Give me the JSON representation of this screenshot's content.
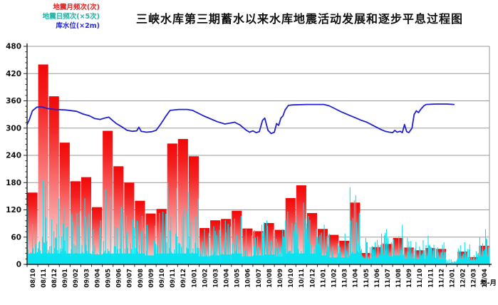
{
  "title": "三峡水库第三期蓄水以来水库地震活动发展和逐步平息过程图",
  "legend": [
    {
      "label": "地震月频次(次)",
      "color": "#e02222"
    },
    {
      "label": "地震日频次(×5次)",
      "color": "#1db2a6"
    },
    {
      "label": "库水位(×2m)",
      "color": "#2a2ad0"
    }
  ],
  "x_axis_label": "年-月",
  "chart_data": {
    "type": "bar",
    "title": "三峡水库第三期蓄水以来水库地震活动发展和逐步平息过程图",
    "xlabel": "年-月",
    "ylabel": "",
    "ylim": [
      0,
      480
    ],
    "ytick_step": 60,
    "y_ticks": [
      0,
      60,
      120,
      180,
      240,
      300,
      360,
      420,
      480
    ],
    "grid": true,
    "legend_position": "top-left",
    "categories": [
      "08/10",
      "08/11",
      "08/12",
      "09/01",
      "09/02",
      "09/03",
      "09/04",
      "09/05",
      "09/06",
      "09/07",
      "09/08",
      "09/09",
      "09/10",
      "09/11",
      "09/12",
      "10/01",
      "10/02",
      "10/03",
      "10/04",
      "10/05",
      "10/06",
      "10/07",
      "10/08",
      "10/09",
      "10/10",
      "10/11",
      "10/12",
      "11/01",
      "11/02",
      "11/03",
      "11/04",
      "11/05",
      "11/06",
      "11/07",
      "11/08",
      "11/09",
      "11/10",
      "11/11",
      "11/12",
      "12/01",
      "12/02",
      "12/03",
      "12/04"
    ],
    "series": [
      {
        "name": "地震月频次(次)",
        "type": "bar-gradient",
        "color_top": "#f20808",
        "color_bottom": "#ffe9e9",
        "values": [
          158,
          440,
          370,
          268,
          183,
          192,
          126,
          294,
          216,
          180,
          140,
          112,
          122,
          266,
          276,
          238,
          80,
          97,
          100,
          118,
          79,
          73,
          91,
          76,
          146,
          174,
          113,
          78,
          65,
          52,
          136,
          25,
          38,
          45,
          58,
          37,
          31,
          36,
          34,
          3,
          28,
          16,
          41
        ]
      },
      {
        "name": "地震日频次(×5次)",
        "type": "daily-spikes",
        "color": "#0be2ef",
        "note": "dense daily bars; per-month peak envelope estimated from pixels",
        "monthly_peaks": [
          130,
          190,
          150,
          130,
          120,
          150,
          100,
          170,
          130,
          110,
          110,
          90,
          120,
          185,
          130,
          165,
          80,
          90,
          100,
          110,
          80,
          90,
          100,
          80,
          120,
          140,
          110,
          90,
          70,
          70,
          175,
          60,
          70,
          80,
          90,
          60,
          55,
          65,
          50,
          12,
          50,
          45,
          80
        ]
      },
      {
        "name": "库水位(×2m)",
        "type": "line",
        "color": "#2121cd",
        "points": [
          [
            0.0,
            308
          ],
          [
            0.2,
            318
          ],
          [
            0.5,
            338
          ],
          [
            0.9,
            346
          ],
          [
            1.3,
            347
          ],
          [
            1.9,
            343
          ],
          [
            2.6,
            341
          ],
          [
            3.6,
            340
          ],
          [
            4.6,
            337
          ],
          [
            5.2,
            331
          ],
          [
            5.8,
            327
          ],
          [
            6.3,
            321
          ],
          [
            6.8,
            319
          ],
          [
            7.2,
            322
          ],
          [
            7.6,
            324
          ],
          [
            7.9,
            318
          ],
          [
            8.3,
            310
          ],
          [
            8.8,
            303
          ],
          [
            9.3,
            295
          ],
          [
            9.8,
            293
          ],
          [
            10.2,
            294
          ],
          [
            10.4,
            302
          ],
          [
            10.6,
            293
          ],
          [
            11.1,
            291
          ],
          [
            11.6,
            292
          ],
          [
            12.0,
            295
          ],
          [
            12.4,
            308
          ],
          [
            12.9,
            326
          ],
          [
            13.3,
            339
          ],
          [
            14.1,
            341
          ],
          [
            14.9,
            341
          ],
          [
            15.4,
            339
          ],
          [
            15.9,
            333
          ],
          [
            16.4,
            327
          ],
          [
            17.1,
            320
          ],
          [
            17.7,
            314
          ],
          [
            18.4,
            309
          ],
          [
            19.1,
            312
          ],
          [
            19.3,
            313
          ],
          [
            19.8,
            307
          ],
          [
            20.4,
            295
          ],
          [
            20.7,
            291
          ],
          [
            21.0,
            294
          ],
          [
            21.3,
            290
          ],
          [
            21.6,
            292
          ],
          [
            21.9,
            317
          ],
          [
            22.1,
            322
          ],
          [
            22.4,
            295
          ],
          [
            22.7,
            288
          ],
          [
            23.0,
            291
          ],
          [
            23.2,
            310
          ],
          [
            23.4,
            306
          ],
          [
            23.6,
            322
          ],
          [
            23.8,
            327
          ],
          [
            24.0,
            340
          ],
          [
            24.3,
            350
          ],
          [
            24.7,
            351
          ],
          [
            26.0,
            352
          ],
          [
            27.6,
            352
          ],
          [
            28.1,
            349
          ],
          [
            28.7,
            342
          ],
          [
            29.2,
            336
          ],
          [
            29.9,
            329
          ],
          [
            30.5,
            323
          ],
          [
            31.1,
            317
          ],
          [
            31.6,
            313
          ],
          [
            32.0,
            308
          ],
          [
            32.4,
            303
          ],
          [
            32.9,
            297
          ],
          [
            33.3,
            293
          ],
          [
            33.7,
            291
          ],
          [
            34.0,
            290
          ],
          [
            34.2,
            295
          ],
          [
            34.4,
            291
          ],
          [
            34.7,
            293
          ],
          [
            34.9,
            290
          ],
          [
            35.1,
            308
          ],
          [
            35.3,
            292
          ],
          [
            35.5,
            290
          ],
          [
            35.8,
            300
          ],
          [
            36.0,
            330
          ],
          [
            36.2,
            338
          ],
          [
            36.4,
            334
          ],
          [
            36.6,
            341
          ],
          [
            36.9,
            349
          ],
          [
            37.1,
            352
          ],
          [
            38.0,
            353
          ],
          [
            39.0,
            353
          ],
          [
            39.7,
            352
          ]
        ]
      }
    ]
  }
}
